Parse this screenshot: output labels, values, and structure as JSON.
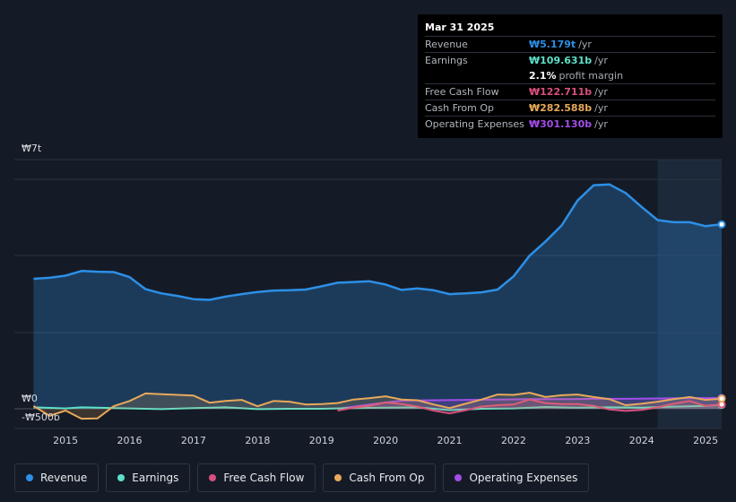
{
  "tooltip": {
    "date": "Mar 31 2025",
    "rows": [
      {
        "label": "Revenue",
        "value": "₩5.179t",
        "unit": "/yr",
        "color": "#2d8fe6"
      },
      {
        "label": "Earnings",
        "value": "₩109.631b",
        "unit": "/yr",
        "color": "#5ee0c9"
      },
      {
        "label": "",
        "value": "2.1%",
        "unit": "profit margin",
        "color": "#ffffff"
      },
      {
        "label": "Free Cash Flow",
        "value": "₩122.711b",
        "unit": "/yr",
        "color": "#d94f7e"
      },
      {
        "label": "Cash From Op",
        "value": "₩282.588b",
        "unit": "/yr",
        "color": "#e8a95a"
      },
      {
        "label": "Operating Expenses",
        "value": "₩301.130b",
        "unit": "/yr",
        "color": "#a24ee8"
      }
    ]
  },
  "axis": {
    "y_top": "₩7t",
    "y_zero": "₩0",
    "y_bottom": "-₩500b"
  },
  "legend": [
    {
      "label": "Revenue",
      "color": "#2d8fe6"
    },
    {
      "label": "Earnings",
      "color": "#5ee0c9"
    },
    {
      "label": "Free Cash Flow",
      "color": "#d94f7e"
    },
    {
      "label": "Cash From Op",
      "color": "#e8a95a"
    },
    {
      "label": "Operating Expenses",
      "color": "#a24ee8"
    }
  ],
  "chart_data": {
    "type": "area",
    "title": "",
    "xlabel": "",
    "ylabel": "",
    "unit": "KRW (trillions)",
    "xlim": [
      2014.2,
      2025.25
    ],
    "ylim": [
      -0.5,
      7
    ],
    "x_ticks": [
      2015,
      2016,
      2017,
      2018,
      2019,
      2020,
      2021,
      2022,
      2023,
      2024,
      2025
    ],
    "x_tick_labels": [
      "2015",
      "2016",
      "2017",
      "2018",
      "2019",
      "2020",
      "2021",
      "2022",
      "2023",
      "2024",
      "2025"
    ],
    "forecast_shade_start": 2024.25,
    "series": [
      {
        "name": "Revenue",
        "color": "#2d8fe6",
        "points": [
          [
            2014.5,
            3.65
          ],
          [
            2014.75,
            3.68
          ],
          [
            2015.0,
            3.74
          ],
          [
            2015.25,
            3.87
          ],
          [
            2015.5,
            3.85
          ],
          [
            2015.75,
            3.84
          ],
          [
            2016.0,
            3.7
          ],
          [
            2016.25,
            3.36
          ],
          [
            2016.5,
            3.24
          ],
          [
            2016.75,
            3.17
          ],
          [
            2017.0,
            3.08
          ],
          [
            2017.25,
            3.06
          ],
          [
            2017.5,
            3.15
          ],
          [
            2017.75,
            3.22
          ],
          [
            2018.0,
            3.28
          ],
          [
            2018.25,
            3.32
          ],
          [
            2018.5,
            3.33
          ],
          [
            2018.75,
            3.35
          ],
          [
            2019.0,
            3.44
          ],
          [
            2019.25,
            3.54
          ],
          [
            2019.5,
            3.56
          ],
          [
            2019.75,
            3.58
          ],
          [
            2020.0,
            3.49
          ],
          [
            2020.25,
            3.34
          ],
          [
            2020.5,
            3.38
          ],
          [
            2020.75,
            3.33
          ],
          [
            2021.0,
            3.22
          ],
          [
            2021.25,
            3.24
          ],
          [
            2021.5,
            3.27
          ],
          [
            2021.75,
            3.35
          ],
          [
            2022.0,
            3.72
          ],
          [
            2022.25,
            4.3
          ],
          [
            2022.5,
            4.7
          ],
          [
            2022.75,
            5.15
          ],
          [
            2023.0,
            5.85
          ],
          [
            2023.25,
            6.28
          ],
          [
            2023.5,
            6.3
          ],
          [
            2023.75,
            6.06
          ],
          [
            2024.0,
            5.67
          ],
          [
            2024.25,
            5.3
          ],
          [
            2024.5,
            5.24
          ],
          [
            2024.75,
            5.24
          ],
          [
            2025.0,
            5.13
          ],
          [
            2025.25,
            5.179
          ]
        ]
      },
      {
        "name": "Earnings",
        "color": "#5ee0c9",
        "points": [
          [
            2014.5,
            0.04
          ],
          [
            2015.0,
            0.01
          ],
          [
            2015.25,
            0.04
          ],
          [
            2015.5,
            0.03
          ],
          [
            2016.0,
            0.01
          ],
          [
            2016.5,
            -0.01
          ],
          [
            2017.0,
            0.02
          ],
          [
            2017.5,
            0.04
          ],
          [
            2018.0,
            -0.01
          ],
          [
            2018.5,
            0.0
          ],
          [
            2019.0,
            0.0
          ],
          [
            2019.5,
            0.02
          ],
          [
            2020.0,
            0.03
          ],
          [
            2020.5,
            0.04
          ],
          [
            2021.0,
            -0.04
          ],
          [
            2021.5,
            0.0
          ],
          [
            2022.0,
            0.01
          ],
          [
            2022.5,
            0.05
          ],
          [
            2023.0,
            0.03
          ],
          [
            2023.5,
            0.04
          ],
          [
            2024.0,
            0.03
          ],
          [
            2024.5,
            0.06
          ],
          [
            2025.0,
            0.08
          ],
          [
            2025.25,
            0.1096
          ]
        ]
      },
      {
        "name": "Free Cash Flow",
        "color": "#d94f7e",
        "points": [
          [
            2019.25,
            -0.05
          ],
          [
            2019.5,
            0.03
          ],
          [
            2019.75,
            0.08
          ],
          [
            2020.0,
            0.18
          ],
          [
            2020.25,
            0.13
          ],
          [
            2020.5,
            0.06
          ],
          [
            2020.75,
            -0.05
          ],
          [
            2021.0,
            -0.13
          ],
          [
            2021.25,
            -0.04
          ],
          [
            2021.5,
            0.06
          ],
          [
            2021.75,
            0.1
          ],
          [
            2022.0,
            0.12
          ],
          [
            2022.25,
            0.26
          ],
          [
            2022.5,
            0.16
          ],
          [
            2022.75,
            0.13
          ],
          [
            2023.0,
            0.13
          ],
          [
            2023.25,
            0.08
          ],
          [
            2023.5,
            -0.02
          ],
          [
            2023.75,
            -0.06
          ],
          [
            2024.0,
            -0.03
          ],
          [
            2024.25,
            0.04
          ],
          [
            2024.5,
            0.14
          ],
          [
            2024.75,
            0.22
          ],
          [
            2025.0,
            0.08
          ],
          [
            2025.25,
            0.1227
          ]
        ]
      },
      {
        "name": "Cash From Op",
        "color": "#e8a95a",
        "points": [
          [
            2014.5,
            0.08
          ],
          [
            2014.75,
            -0.2
          ],
          [
            2015.0,
            -0.05
          ],
          [
            2015.25,
            -0.28
          ],
          [
            2015.5,
            -0.27
          ],
          [
            2015.75,
            0.07
          ],
          [
            2016.0,
            0.22
          ],
          [
            2016.25,
            0.43
          ],
          [
            2016.5,
            0.41
          ],
          [
            2016.75,
            0.39
          ],
          [
            2017.0,
            0.37
          ],
          [
            2017.25,
            0.17
          ],
          [
            2017.5,
            0.22
          ],
          [
            2017.75,
            0.25
          ],
          [
            2018.0,
            0.07
          ],
          [
            2018.25,
            0.22
          ],
          [
            2018.5,
            0.2
          ],
          [
            2018.75,
            0.12
          ],
          [
            2019.0,
            0.13
          ],
          [
            2019.25,
            0.16
          ],
          [
            2019.5,
            0.26
          ],
          [
            2019.75,
            0.3
          ],
          [
            2020.0,
            0.35
          ],
          [
            2020.25,
            0.26
          ],
          [
            2020.5,
            0.24
          ],
          [
            2020.75,
            0.12
          ],
          [
            2021.0,
            0.02
          ],
          [
            2021.25,
            0.14
          ],
          [
            2021.5,
            0.26
          ],
          [
            2021.75,
            0.4
          ],
          [
            2022.0,
            0.39
          ],
          [
            2022.25,
            0.45
          ],
          [
            2022.5,
            0.33
          ],
          [
            2022.75,
            0.38
          ],
          [
            2023.0,
            0.4
          ],
          [
            2023.25,
            0.33
          ],
          [
            2023.5,
            0.27
          ],
          [
            2023.75,
            0.1
          ],
          [
            2024.0,
            0.14
          ],
          [
            2024.25,
            0.2
          ],
          [
            2024.5,
            0.27
          ],
          [
            2024.75,
            0.33
          ],
          [
            2025.0,
            0.25
          ],
          [
            2025.25,
            0.2826
          ]
        ]
      },
      {
        "name": "Operating Expenses",
        "color": "#a24ee8",
        "points": [
          [
            2019.25,
            0.0
          ],
          [
            2019.75,
            0.12
          ],
          [
            2020.25,
            0.23
          ],
          [
            2020.75,
            0.24
          ],
          [
            2021.25,
            0.25
          ],
          [
            2021.75,
            0.26
          ],
          [
            2022.25,
            0.27
          ],
          [
            2022.75,
            0.27
          ],
          [
            2023.25,
            0.28
          ],
          [
            2023.75,
            0.28
          ],
          [
            2024.25,
            0.29
          ],
          [
            2024.75,
            0.3
          ],
          [
            2025.25,
            0.3011
          ]
        ]
      }
    ]
  }
}
